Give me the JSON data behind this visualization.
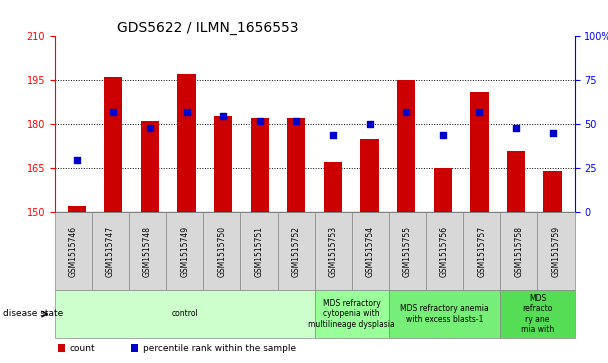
{
  "title": "GDS5622 / ILMN_1656553",
  "samples": [
    "GSM1515746",
    "GSM1515747",
    "GSM1515748",
    "GSM1515749",
    "GSM1515750",
    "GSM1515751",
    "GSM1515752",
    "GSM1515753",
    "GSM1515754",
    "GSM1515755",
    "GSM1515756",
    "GSM1515757",
    "GSM1515758",
    "GSM1515759"
  ],
  "count_values": [
    152,
    196,
    181,
    197,
    183,
    182,
    182,
    167,
    175,
    195,
    165,
    191,
    171,
    164
  ],
  "percentile_values": [
    30,
    57,
    48,
    57,
    55,
    52,
    52,
    44,
    50,
    57,
    44,
    57,
    48,
    45
  ],
  "ylim_left": [
    150,
    210
  ],
  "ylim_right": [
    0,
    100
  ],
  "yticks_left": [
    150,
    165,
    180,
    195,
    210
  ],
  "yticks_right": [
    0,
    25,
    50,
    75,
    100
  ],
  "ytick_labels_right": [
    "0",
    "25",
    "50",
    "75",
    "100%"
  ],
  "bar_color": "#cc0000",
  "dot_color": "#0000cc",
  "disease_groups": [
    {
      "label": "control",
      "indices": [
        0,
        6
      ],
      "color": "#ccffcc"
    },
    {
      "label": "MDS refractory\ncytopenia with\nmultilineage dysplasia",
      "indices": [
        7,
        8
      ],
      "color": "#99ff99"
    },
    {
      "label": "MDS refractory anemia\nwith excess blasts-1",
      "indices": [
        9,
        11
      ],
      "color": "#77ee77"
    },
    {
      "label": "MDS\nrefracto\nry ane\nmia with",
      "indices": [
        12,
        13
      ],
      "color": "#55dd55"
    }
  ],
  "legend_count_label": "count",
  "legend_percentile_label": "percentile rank within the sample",
  "bar_width": 0.5,
  "dot_size": 25,
  "title_fontsize": 10,
  "tick_fontsize": 7,
  "sample_fontsize": 5.5,
  "disease_fontsize": 5.5
}
